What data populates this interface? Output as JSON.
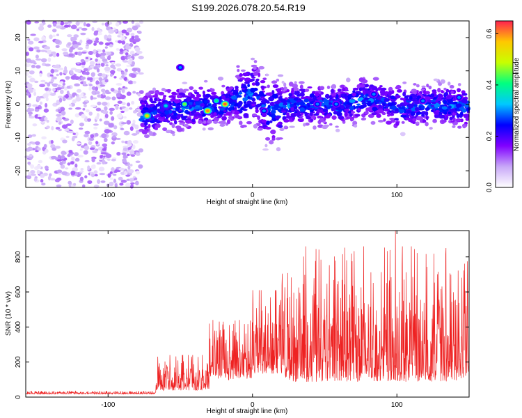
{
  "title": "S199.2026.078.20.54.R19",
  "chart_data": [
    {
      "type": "heatmap",
      "xlabel": "Height of straight line (km)",
      "ylabel": "Frequency (Hz)",
      "xlim": [
        -157,
        150
      ],
      "ylim": [
        -25,
        25
      ],
      "xticks": [
        -100,
        0,
        100
      ],
      "xtick_labels": [
        "-100",
        "0",
        "100"
      ],
      "yticks": [
        -20,
        -10,
        0,
        10,
        20
      ],
      "ytick_labels": [
        "-20",
        "-10",
        "0",
        "10",
        "20"
      ],
      "colorbar": {
        "label": "Normalized spectral amplitude",
        "range": [
          0,
          0.65
        ],
        "ticks": [
          0,
          0.2,
          0.4,
          0.6
        ],
        "tick_labels": [
          "0.0",
          "0.2",
          "0.4",
          "0.6"
        ],
        "colormap": [
          "#ffffff",
          "#c8a8f8",
          "#8000ff",
          "#0000ff",
          "#00c8ff",
          "#00ff80",
          "#c8ff00",
          "#ffc800",
          "#ff2050"
        ]
      },
      "noise_region": {
        "x": [
          -157,
          -77
        ],
        "y": [
          -25,
          25
        ],
        "amplitude": 0.08
      },
      "ridge": [
        {
          "x": -77,
          "f": -3.5
        },
        {
          "x": -60,
          "f": -1.5
        },
        {
          "x": -40,
          "f": -1
        },
        {
          "x": -20,
          "f": 0
        },
        {
          "x": -5,
          "f": 2
        },
        {
          "x": 0,
          "f": 4
        },
        {
          "x": 10,
          "f": -2
        },
        {
          "x": 30,
          "f": 0
        },
        {
          "x": 60,
          "f": -0.5
        },
        {
          "x": 80,
          "f": 2
        },
        {
          "x": 100,
          "f": -1
        },
        {
          "x": 130,
          "f": 0
        },
        {
          "x": 150,
          "f": -1
        }
      ],
      "hotspots": [
        {
          "x": -73,
          "f": -3.5,
          "amp": 0.55
        },
        {
          "x": -47,
          "f": 0,
          "amp": 0.45
        },
        {
          "x": -31,
          "f": -2,
          "amp": 0.6
        },
        {
          "x": -19,
          "f": 0,
          "amp": 0.62
        },
        {
          "x": -25,
          "f": 1,
          "amp": 0.4
        },
        {
          "x": -60,
          "f": -0.5,
          "amp": 0.35
        },
        {
          "x": -50,
          "f": 11,
          "amp": 0.3
        },
        {
          "x": 8,
          "f": -2,
          "amp": 0.3
        },
        {
          "x": 45,
          "f": 0,
          "amp": 0.3
        },
        {
          "x": 58,
          "f": 0,
          "amp": 0.3
        },
        {
          "x": 84,
          "f": 3,
          "amp": 0.3
        },
        {
          "x": 118,
          "f": 1,
          "amp": 0.3
        },
        {
          "x": 143,
          "f": 2,
          "amp": 0.3
        }
      ]
    },
    {
      "type": "line",
      "xlabel": "Height of straight line (km)",
      "ylabel": "SNR (10 * v/v)",
      "xlim": [
        -157,
        150
      ],
      "ylim": [
        0,
        950
      ],
      "xticks": [
        -100,
        0,
        100
      ],
      "xtick_labels": [
        "-100",
        "0",
        "100"
      ],
      "yticks": [
        0,
        200,
        400,
        600,
        800
      ],
      "ytick_labels": [
        "0",
        "200",
        "400",
        "600",
        "800"
      ],
      "color": "#ee2222",
      "segments": [
        {
          "x": [
            -157,
            -67
          ],
          "base": 20,
          "spread": 15,
          "peak": 35
        },
        {
          "x": [
            -67,
            -30
          ],
          "base": 60,
          "spread": 150,
          "peak": 240
        },
        {
          "x": [
            -30,
            0
          ],
          "base": 140,
          "spread": 280,
          "peak": 440
        },
        {
          "x": [
            0,
            20
          ],
          "base": 190,
          "spread": 400,
          "peak": 610
        },
        {
          "x": [
            20,
            150
          ],
          "base": 170,
          "spread": 550,
          "peak": 860
        }
      ],
      "peaks": [
        {
          "x": 99,
          "y": 950
        },
        {
          "x": 77,
          "y": 860
        },
        {
          "x": 69,
          "y": 775
        },
        {
          "x": 16,
          "y": 600
        },
        {
          "x": -9,
          "y": 440
        },
        {
          "x": 148,
          "y": 520
        }
      ]
    }
  ]
}
